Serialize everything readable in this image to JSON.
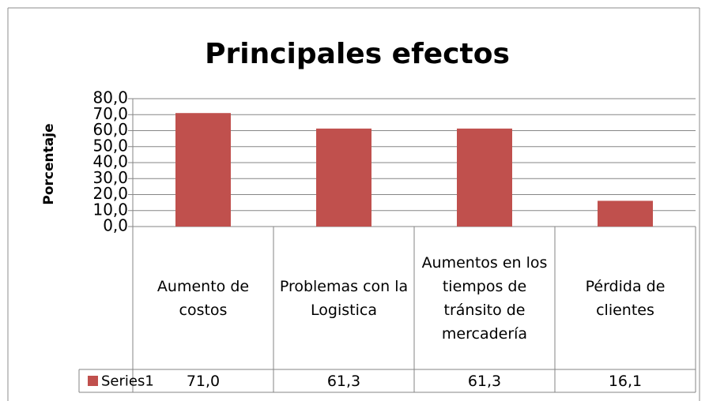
{
  "chart_data": {
    "type": "bar",
    "title": "Principales efectos",
    "y_label": "Porcentaje",
    "categories": [
      "Aumento de costos",
      "Problemas con la Logistica",
      "Aumentos en los tiempos de tránsito de mercadería",
      "Pérdida de clientes"
    ],
    "series": [
      {
        "name": "Series1",
        "color": "#c0504d",
        "values": [
          71.0,
          61.3,
          61.3,
          16.1
        ],
        "value_labels": [
          "71,0",
          "61,3",
          "61,3",
          "16,1"
        ]
      }
    ],
    "ylim": [
      0,
      80
    ],
    "yticks": [
      {
        "value": 0,
        "label": "0,0"
      },
      {
        "value": 10,
        "label": "10,0"
      },
      {
        "value": 20,
        "label": "20,0"
      },
      {
        "value": 30,
        "label": "30,0"
      },
      {
        "value": 40,
        "label": "40,0"
      },
      {
        "value": 50,
        "label": "50,0"
      },
      {
        "value": 60,
        "label": "60,0"
      },
      {
        "value": 70,
        "label": "70,0"
      },
      {
        "value": 80,
        "label": "80,0"
      }
    ],
    "grid": true
  }
}
